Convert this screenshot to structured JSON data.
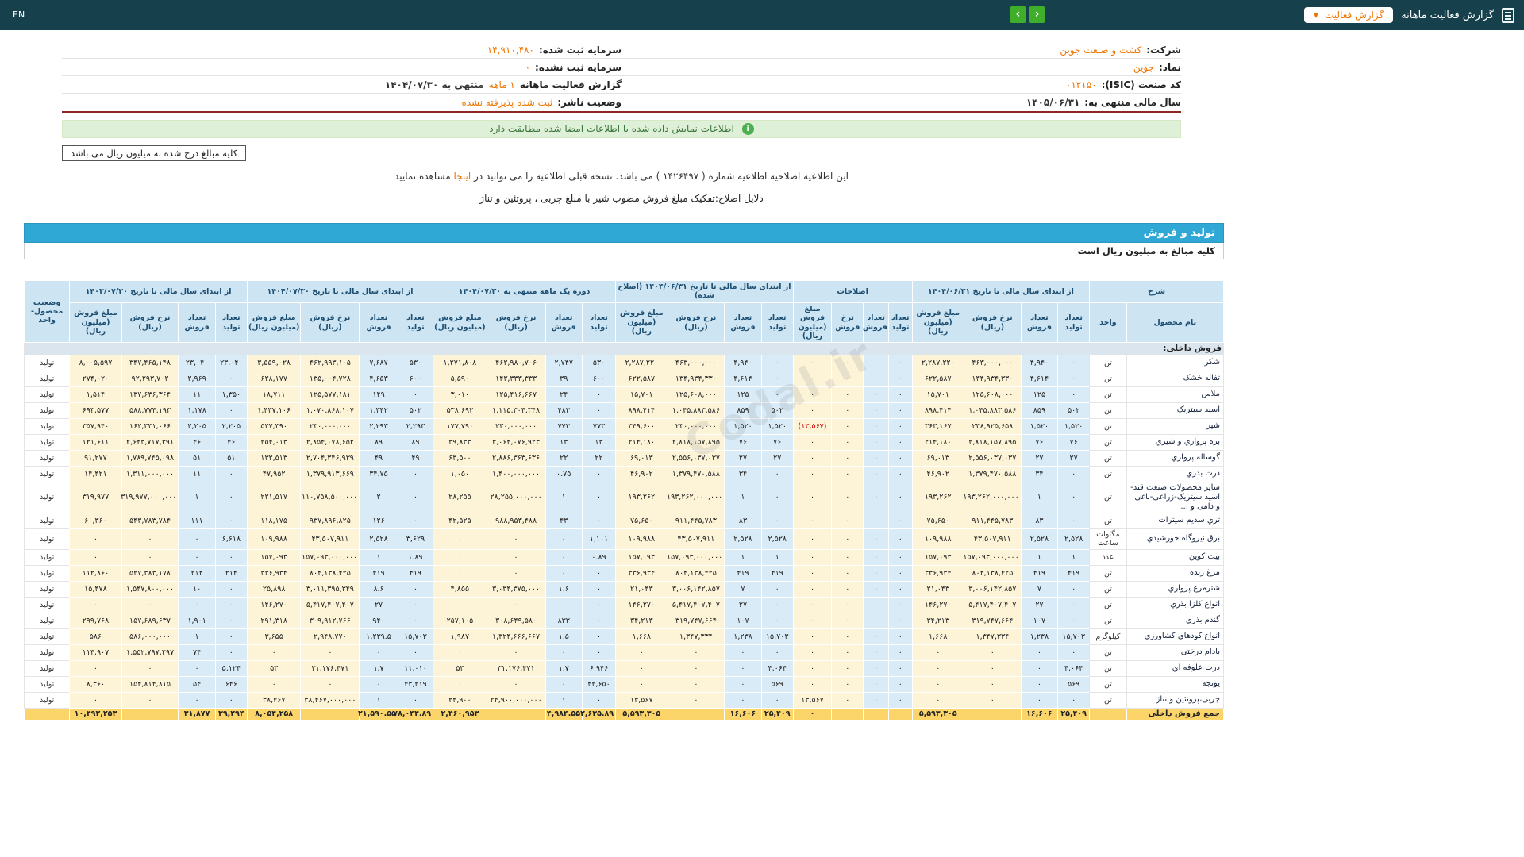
{
  "colors": {
    "navbar": "#16414c",
    "accent_orange": "#ee7500",
    "nav_green": "#3fae2a",
    "section_bar_blue": "#2fa8d5",
    "qty_cell_blue": "#d9ebf7",
    "money_cell_cream": "#fdf4d7",
    "total_row_amber": "#fbd56a",
    "negative_red": "#cc0000",
    "success_bg": "#dff0d8",
    "divider_maroon": "#8c2723"
  },
  "navbar": {
    "title": "گزارش فعالیت ماهانه",
    "dropdown_label": "گزارش فعالیت",
    "dropdown_caret": "▼",
    "prev_arrow": "‹",
    "next_arrow": "›",
    "en_label": "EN"
  },
  "company": {
    "company_label": "شرکت:",
    "company_value": "کشت و صنعت جوین",
    "symbol_label": "نماد:",
    "symbol_value": "جوین",
    "isic_label": "کد صنعت (ISIC):",
    "isic_value": "۰۱۲۱۵۰",
    "fiscal_year_label": "سال مالی منتهی به:",
    "fiscal_year_value": "۱۴۰۵/۰۶/۳۱",
    "registered_capital_label": "سرمایه ثبت شده:",
    "registered_capital_value": "۱۴,۹۱۰,۴۸۰",
    "unregistered_capital_label": "سرمایه ثبت نشده:",
    "unregistered_capital_value": "۰",
    "period_label": "گزارش فعالیت ماهانه",
    "period_value": "۱ ماهه",
    "period_suffix": "منتهی به ۱۴۰۴/۰۷/۳۰",
    "publisher_status_label": "وضعیت ناشر:",
    "publisher_status_value": "ثبت شده پذیرفته نشده"
  },
  "messages": {
    "signature_match": "اطلاعات نمایش داده شده با اطلاعات امضا شده مطابقت دارد",
    "info_icon_glyph": "i",
    "amounts_note": "کلیه مبالغ درج شده به میلیون ریال می باشد",
    "amendment_pre": "این اطلاعیه اصلاحیه اطلاعیه شماره ( ۱۴۲۶۴۹۷ ) می باشد. نسخه قبلی اطلاعیه را می توانید در",
    "amendment_link": "اینجا",
    "amendment_post": "مشاهده نمایید",
    "amendment_reason": "دلایل اصلاح:تفکیک مبلغ فروش مصوب شیر با مبلغ چربی ، پروتئین و تناژ"
  },
  "watermark": "Codal.ir",
  "table": {
    "section_title": "تولید و فروش",
    "note": "کلیه مبالغ به میلیون ریال است",
    "col_desc_header": "شرح",
    "name_header": "نام محصول",
    "unit_header": "واحد",
    "status_header": "وضعیت محصول- واحد",
    "groups": [
      {
        "key": "a",
        "title": "از ابتدای سال مالی تا تاریخ ۱۴۰۴/۰۶/۳۱",
        "subs": [
          "تعداد تولید",
          "تعداد فروش",
          "نرخ فروش (ریال)",
          "مبلغ فروش (میلیون ریال)"
        ]
      },
      {
        "key": "b",
        "title": "اصلاحات",
        "subs": [
          "تعداد تولید",
          "تعداد فروش",
          "نرخ فروش",
          "مبلغ فروش (میلیون ریال)"
        ]
      },
      {
        "key": "c",
        "title": "از ابتدای سال مالی تا تاریخ ۱۴۰۴/۰۶/۳۱ (اصلاح شده)",
        "subs": [
          "تعداد تولید",
          "تعداد فروش",
          "نرخ فروش (ریال)",
          "مبلغ فروش (میلیون ریال)"
        ]
      },
      {
        "key": "d",
        "title": "دوره یک ماهه منتهی به ۱۴۰۴/۰۷/۳۰",
        "subs": [
          "تعداد تولید",
          "تعداد فروش",
          "نرخ فروش (ریال)",
          "مبلغ فروش (میلیون ریال)"
        ]
      },
      {
        "key": "e",
        "title": "از ابتدای سال مالی تا تاریخ ۱۴۰۴/۰۷/۳۰",
        "subs": [
          "تعداد تولید",
          "تعداد فروش",
          "نرخ فروش (ریال)",
          "مبلغ فروش (میلیون ریال)"
        ]
      },
      {
        "key": "f",
        "title": "از ابتدای سال مالی تا تاریخ ۱۴۰۳/۰۷/۳۰",
        "subs": [
          "تعداد تولید",
          "تعداد فروش",
          "نرخ فروش (ریال)",
          "مبلغ فروش (میلیون ریال)"
        ]
      }
    ],
    "section_row": "فروش داخلی:",
    "rows": [
      {
        "name": "شکر",
        "unit": "تن",
        "status": "تولید",
        "a": [
          "۰",
          "۴,۹۴۰",
          "۴۶۳,۰۰۰,۰۰۰",
          "۲,۲۸۷,۲۲۰"
        ],
        "b": [
          "۰",
          "۰",
          "۰",
          "۰"
        ],
        "c": [
          "۰",
          "۴,۹۴۰",
          "۴۶۳,۰۰۰,۰۰۰",
          "۲,۲۸۷,۲۲۰"
        ],
        "d": [
          "۵۳۰",
          "۲,۷۴۷",
          "۴۶۲,۹۸۰,۷۰۶",
          "۱,۲۷۱,۸۰۸"
        ],
        "e": [
          "۵۳۰",
          "۷,۶۸۷",
          "۴۶۲,۹۹۳,۱۰۵",
          "۳,۵۵۹,۰۲۸"
        ],
        "f": [
          "۲۳,۰۴۰",
          "۲۳,۰۴۰",
          "۳۴۷,۴۶۵,۱۴۸",
          "۸,۰۰۵,۵۹۷"
        ]
      },
      {
        "name": "تفاله خشک",
        "unit": "تن",
        "status": "تولید",
        "a": [
          "۰",
          "۴,۶۱۴",
          "۱۳۴,۹۳۴,۳۳۰",
          "۶۲۲,۵۸۷"
        ],
        "b": [
          "۰",
          "۰",
          "۰",
          "۰"
        ],
        "c": [
          "۰",
          "۴,۶۱۴",
          "۱۳۴,۹۳۴,۳۳۰",
          "۶۲۲,۵۸۷"
        ],
        "d": [
          "۶۰۰",
          "۳۹",
          "۱۴۳,۳۳۳,۳۳۳",
          "۵,۵۹۰"
        ],
        "e": [
          "۶۰۰",
          "۴,۶۵۳",
          "۱۳۵,۰۰۴,۷۲۸",
          "۶۲۸,۱۷۷"
        ],
        "f": [
          "۰",
          "۲,۹۶۹",
          "۹۲,۲۹۳,۷۰۲",
          "۲۷۴,۰۲۰"
        ]
      },
      {
        "name": "ملاس",
        "unit": "تن",
        "status": "تولید",
        "a": [
          "۰",
          "۱۲۵",
          "۱۲۵,۶۰۸,۰۰۰",
          "۱۵,۷۰۱"
        ],
        "b": [
          "۰",
          "۰",
          "۰",
          "۰"
        ],
        "c": [
          "۰",
          "۱۲۵",
          "۱۲۵,۶۰۸,۰۰۰",
          "۱۵,۷۰۱"
        ],
        "d": [
          "۰",
          "۲۴",
          "۱۲۵,۴۱۶,۶۶۷",
          "۳,۰۱۰"
        ],
        "e": [
          "۰",
          "۱۴۹",
          "۱۲۵,۵۷۷,۱۸۱",
          "۱۸,۷۱۱"
        ],
        "f": [
          "۱,۳۵۰",
          "۱۱",
          "۱۳۷,۶۳۶,۳۶۴",
          "۱,۵۱۴"
        ]
      },
      {
        "name": "اسید سیتریک",
        "unit": "تن",
        "status": "تولید",
        "a": [
          "۵۰۲",
          "۸۵۹",
          "۱,۰۴۵,۸۸۳,۵۸۶",
          "۸۹۸,۴۱۴"
        ],
        "b": [
          "۰",
          "۰",
          "۰",
          "۰"
        ],
        "c": [
          "۵۰۲",
          "۸۵۹",
          "۱,۰۴۵,۸۸۳,۵۸۶",
          "۸۹۸,۴۱۴"
        ],
        "d": [
          "۰",
          "۴۸۳",
          "۱,۱۱۵,۳۰۴,۳۴۸",
          "۵۳۸,۶۹۲"
        ],
        "e": [
          "۵۰۲",
          "۱,۳۴۲",
          "۱,۰۷۰,۸۶۸,۱۰۷",
          "۱,۴۳۷,۱۰۶"
        ],
        "f": [
          "۰",
          "۱,۱۷۸",
          "۵۸۸,۷۷۴,۱۹۳",
          "۶۹۳,۵۷۷"
        ]
      },
      {
        "name": "شیر",
        "unit": "تن",
        "status": "تولید",
        "a": [
          "۱,۵۲۰",
          "۱,۵۲۰",
          "۲۳۸,۹۲۵,۶۵۸",
          "۳۶۳,۱۶۷"
        ],
        "b": [
          "۰",
          "۰",
          "۰",
          "(۱۳,۵۶۷)"
        ],
        "c": [
          "۱,۵۲۰",
          "۱,۵۲۰",
          "۲۳۰,۰۰۰,۰۰۰",
          "۳۴۹,۶۰۰"
        ],
        "d": [
          "۷۷۳",
          "۷۷۳",
          "۲۳۰,۰۰۰,۰۰۰",
          "۱۷۷,۷۹۰"
        ],
        "e": [
          "۲,۲۹۳",
          "۲,۲۹۳",
          "۲۳۰,۰۰۰,۰۰۰",
          "۵۲۷,۳۹۰"
        ],
        "f": [
          "۲,۲۰۵",
          "۲,۲۰۵",
          "۱۶۲,۳۳۱,۰۶۶",
          "۳۵۷,۹۴۰"
        ]
      },
      {
        "name": "بره پرواري و شیري",
        "unit": "تن",
        "status": "تولید",
        "a": [
          "۷۶",
          "۷۶",
          "۲,۸۱۸,۱۵۷,۸۹۵",
          "۲۱۴,۱۸۰"
        ],
        "b": [
          "۰",
          "۰",
          "۰",
          "۰"
        ],
        "c": [
          "۷۶",
          "۷۶",
          "۲,۸۱۸,۱۵۷,۸۹۵",
          "۲۱۴,۱۸۰"
        ],
        "d": [
          "۱۳",
          "۱۳",
          "۳,۰۶۴,۰۷۶,۹۲۳",
          "۳۹,۸۳۳"
        ],
        "e": [
          "۸۹",
          "۸۹",
          "۲,۸۵۴,۰۷۸,۶۵۲",
          "۲۵۴,۰۱۳"
        ],
        "f": [
          "۴۶",
          "۴۶",
          "۲,۶۴۳,۷۱۷,۳۹۱",
          "۱۲۱,۶۱۱"
        ]
      },
      {
        "name": "گوساله پرواري",
        "unit": "تن",
        "status": "تولید",
        "a": [
          "۲۷",
          "۲۷",
          "۲,۵۵۶,۰۳۷,۰۳۷",
          "۶۹,۰۱۳"
        ],
        "b": [
          "۰",
          "۰",
          "۰",
          "۰"
        ],
        "c": [
          "۲۷",
          "۲۷",
          "۲,۵۵۶,۰۳۷,۰۳۷",
          "۶۹,۰۱۳"
        ],
        "d": [
          "۲۲",
          "۲۲",
          "۲,۸۸۶,۳۶۳,۶۳۶",
          "۶۳,۵۰۰"
        ],
        "e": [
          "۴۹",
          "۴۹",
          "۲,۷۰۴,۳۴۶,۹۳۹",
          "۱۳۲,۵۱۳"
        ],
        "f": [
          "۵۱",
          "۵۱",
          "۱,۷۸۹,۷۴۵,۰۹۸",
          "۹۱,۲۷۷"
        ]
      },
      {
        "name": "ذرت بذري",
        "unit": "تن",
        "status": "تولید",
        "a": [
          "۰",
          "۳۴",
          "۱,۳۷۹,۴۷۰,۵۸۸",
          "۴۶,۹۰۲"
        ],
        "b": [
          "۰",
          "۰",
          "۰",
          "۰"
        ],
        "c": [
          "۰",
          "۳۴",
          "۱,۳۷۹,۴۷۰,۵۸۸",
          "۴۶,۹۰۲"
        ],
        "d": [
          "۰",
          "۰.۷۵",
          "۱,۴۰۰,۰۰۰,۰۰۰",
          "۱,۰۵۰"
        ],
        "e": [
          "۰",
          "۳۴.۷۵",
          "۱,۳۷۹,۹۱۳,۶۶۹",
          "۴۷,۹۵۲"
        ],
        "f": [
          "۰",
          "۱۱",
          "۱,۳۱۱,۰۰۰,۰۰۰",
          "۱۴,۴۲۱"
        ]
      },
      {
        "name": "سایر محصولات صنعت قند- اسید سیتریک-زراعی-باغی و دامی و ...",
        "unit": "تن",
        "status": "تولید",
        "a": [
          "۰",
          "۱",
          "۱۹۳,۲۶۲,۰۰۰,۰۰۰",
          "۱۹۳,۲۶۲"
        ],
        "b": [
          "۰",
          "۰",
          "۰",
          "۰"
        ],
        "c": [
          "۰",
          "۱",
          "۱۹۳,۲۶۲,۰۰۰,۰۰۰",
          "۱۹۳,۲۶۲"
        ],
        "d": [
          "۰",
          "۱",
          "۲۸,۲۵۵,۰۰۰,۰۰۰",
          "۲۸,۲۵۵"
        ],
        "e": [
          "۰",
          "۲",
          "۱۱۰,۷۵۸,۵۰۰,۰۰۰",
          "۲۲۱,۵۱۷"
        ],
        "f": [
          "۰",
          "۱",
          "۳۱۹,۹۷۷,۰۰۰,۰۰۰",
          "۳۱۹,۹۷۷"
        ]
      },
      {
        "name": "تري سدیم سیترات",
        "unit": "تن",
        "status": "تولید",
        "a": [
          "۰",
          "۸۳",
          "۹۱۱,۴۴۵,۷۸۳",
          "۷۵,۶۵۰"
        ],
        "b": [
          "۰",
          "۰",
          "۰",
          "۰"
        ],
        "c": [
          "۰",
          "۸۳",
          "۹۱۱,۴۴۵,۷۸۳",
          "۷۵,۶۵۰"
        ],
        "d": [
          "۰",
          "۴۳",
          "۹۸۸,۹۵۳,۴۸۸",
          "۴۲,۵۲۵"
        ],
        "e": [
          "۰",
          "۱۲۶",
          "۹۳۷,۸۹۶,۸۲۵",
          "۱۱۸,۱۷۵"
        ],
        "f": [
          "۰",
          "۱۱۱",
          "۵۴۳,۷۸۳,۷۸۴",
          "۶۰,۳۶۰"
        ]
      },
      {
        "name": "برق نیروگاه خورشیدي",
        "unit": "مگاوات ساعت",
        "status": "تولید",
        "a": [
          "۲,۵۲۸",
          "۲,۵۲۸",
          "۴۳,۵۰۷,۹۱۱",
          "۱۰۹,۹۸۸"
        ],
        "b": [
          "۰",
          "۰",
          "۰",
          "۰"
        ],
        "c": [
          "۲,۵۲۸",
          "۲,۵۲۸",
          "۴۳,۵۰۷,۹۱۱",
          "۱۰۹,۹۸۸"
        ],
        "d": [
          "۱,۱۰۱",
          "۰",
          "۰",
          "۰"
        ],
        "e": [
          "۳,۶۲۹",
          "۲,۵۲۸",
          "۴۳,۵۰۷,۹۱۱",
          "۱۰۹,۹۸۸"
        ],
        "f": [
          "۶,۶۱۸",
          "۰",
          "۰",
          "۰"
        ]
      },
      {
        "name": "بیت کوین",
        "unit": "عدد",
        "status": "تولید",
        "a": [
          "۱",
          "۱",
          "۱۵۷,۰۹۳,۰۰۰,۰۰۰",
          "۱۵۷,۰۹۳"
        ],
        "b": [
          "۰",
          "۰",
          "۰",
          "۰"
        ],
        "c": [
          "۱",
          "۱",
          "۱۵۷,۰۹۳,۰۰۰,۰۰۰",
          "۱۵۷,۰۹۳"
        ],
        "d": [
          "۰.۸۹",
          "۰",
          "۰",
          "۰"
        ],
        "e": [
          "۱.۸۹",
          "۱",
          "۱۵۷,۰۹۳,۰۰۰,۰۰۰",
          "۱۵۷,۰۹۳"
        ],
        "f": [
          "۰",
          "۰",
          "۰",
          "۰"
        ]
      },
      {
        "name": "مرغ زنده",
        "unit": "تن",
        "status": "تولید",
        "a": [
          "۴۱۹",
          "۴۱۹",
          "۸۰۴,۱۳۸,۴۲۵",
          "۳۳۶,۹۳۴"
        ],
        "b": [
          "۰",
          "۰",
          "۰",
          "۰"
        ],
        "c": [
          "۴۱۹",
          "۴۱۹",
          "۸۰۴,۱۳۸,۴۲۵",
          "۳۳۶,۹۳۴"
        ],
        "d": [
          "۰",
          "۰",
          "۰",
          "۰"
        ],
        "e": [
          "۴۱۹",
          "۴۱۹",
          "۸۰۴,۱۳۸,۴۲۵",
          "۳۳۶,۹۳۴"
        ],
        "f": [
          "۲۱۴",
          "۲۱۴",
          "۵۲۷,۳۸۳,۱۷۸",
          "۱۱۲,۸۶۰"
        ]
      },
      {
        "name": "شترمرغ پرواري",
        "unit": "تن",
        "status": "تولید",
        "a": [
          "۰",
          "۷",
          "۳,۰۰۶,۱۴۲,۸۵۷",
          "۲۱,۰۴۳"
        ],
        "b": [
          "۰",
          "۰",
          "۰",
          "۰"
        ],
        "c": [
          "۰",
          "۷",
          "۳,۰۰۶,۱۴۲,۸۵۷",
          "۲۱,۰۴۳"
        ],
        "d": [
          "۰",
          "۱.۶",
          "۳,۰۳۴,۳۷۵,۰۰۰",
          "۴,۸۵۵"
        ],
        "e": [
          "۰",
          "۸.۶",
          "۳,۰۱۱,۳۹۵,۳۴۹",
          "۲۵,۸۹۸"
        ],
        "f": [
          "۰",
          "۱۰",
          "۱,۵۴۷,۸۰۰,۰۰۰",
          "۱۵,۴۷۸"
        ]
      },
      {
        "name": "انواع کلزا بذري",
        "unit": "تن",
        "status": "تولید",
        "a": [
          "۰",
          "۲۷",
          "۵,۴۱۷,۴۰۷,۴۰۷",
          "۱۴۶,۲۷۰"
        ],
        "b": [
          "۰",
          "۰",
          "۰",
          "۰"
        ],
        "c": [
          "۰",
          "۲۷",
          "۵,۴۱۷,۴۰۷,۴۰۷",
          "۱۴۶,۲۷۰"
        ],
        "d": [
          "۰",
          "۰",
          "۰",
          "۰"
        ],
        "e": [
          "۰",
          "۲۷",
          "۵,۴۱۷,۴۰۷,۴۰۷",
          "۱۴۶,۲۷۰"
        ],
        "f": [
          "۰",
          "۰",
          "۰",
          "۰"
        ]
      },
      {
        "name": "گندم بذري",
        "unit": "تن",
        "status": "تولید",
        "a": [
          "۰",
          "۱۰۷",
          "۳۱۹,۷۴۷,۶۶۴",
          "۳۴,۲۱۳"
        ],
        "b": [
          "۰",
          "۰",
          "۰",
          "۰"
        ],
        "c": [
          "۰",
          "۱۰۷",
          "۳۱۹,۷۴۷,۶۶۴",
          "۳۴,۲۱۳"
        ],
        "d": [
          "۰",
          "۸۳۳",
          "۳۰۸,۶۴۹,۵۸۰",
          "۲۵۷,۱۰۵"
        ],
        "e": [
          "۰",
          "۹۴۰",
          "۳۰۹,۹۱۲,۷۶۶",
          "۲۹۱,۳۱۸"
        ],
        "f": [
          "۰",
          "۱,۹۰۱",
          "۱۵۷,۶۸۹,۶۳۷",
          "۲۹۹,۷۶۸"
        ]
      },
      {
        "name": "انواع کودهاي کشاورزي",
        "unit": "کیلوگرم",
        "status": "تولید",
        "a": [
          "۱۵,۷۰۳",
          "۱,۲۳۸",
          "۱,۳۴۷,۳۳۴",
          "۱,۶۶۸"
        ],
        "b": [
          "۰",
          "۰",
          "۰",
          "۰"
        ],
        "c": [
          "۱۵,۷۰۳",
          "۱,۲۳۸",
          "۱,۳۴۷,۳۳۴",
          "۱,۶۶۸"
        ],
        "d": [
          "۰",
          "۱.۵",
          "۱,۳۲۴,۶۶۶,۶۶۷",
          "۱,۹۸۷"
        ],
        "e": [
          "۱۵,۷۰۳",
          "۱,۲۳۹.۵",
          "۲,۹۴۸,۷۷۰",
          "۳,۶۵۵"
        ],
        "f": [
          "۰",
          "۱",
          "۵۸۶,۰۰۰,۰۰۰",
          "۵۸۶"
        ]
      },
      {
        "name": "بادام درختی",
        "unit": "تن",
        "status": "تولید",
        "a": [
          "۰",
          "۰",
          "۰",
          "۰"
        ],
        "b": [
          "۰",
          "۰",
          "۰",
          "۰"
        ],
        "c": [
          "۰",
          "۰",
          "۰",
          "۰"
        ],
        "d": [
          "۰",
          "۰",
          "۰",
          "۰"
        ],
        "e": [
          "۰",
          "۰",
          "۰",
          "۰"
        ],
        "f": [
          "۰",
          "۷۴",
          "۱,۵۵۲,۷۹۷,۲۹۷",
          "۱۱۴,۹۰۷"
        ]
      },
      {
        "name": "ذرت علوفه اي",
        "unit": "تن",
        "status": "تولید",
        "a": [
          "۴,۰۶۴",
          "۰",
          "۰",
          "۰"
        ],
        "b": [
          "۰",
          "۰",
          "۰",
          "۰"
        ],
        "c": [
          "۴,۰۶۴",
          "۰",
          "۰",
          "۰"
        ],
        "d": [
          "۶,۹۴۶",
          "۱.۷",
          "۳۱,۱۷۶,۴۷۱",
          "۵۳"
        ],
        "e": [
          "۱۱,۰۱۰",
          "۱.۷",
          "۳۱,۱۷۶,۴۷۱",
          "۵۳"
        ],
        "f": [
          "۵,۱۲۴",
          "۰",
          "۰",
          "۰"
        ]
      },
      {
        "name": "یونجه",
        "unit": "تن",
        "status": "تولید",
        "a": [
          "۵۶۹",
          "۰",
          "۰",
          "۰"
        ],
        "b": [
          "۰",
          "۰",
          "۰",
          "۰"
        ],
        "c": [
          "۵۶۹",
          "۰",
          "۰",
          "۰"
        ],
        "d": [
          "۴۲,۶۵۰",
          "۰",
          "۰",
          "۰"
        ],
        "e": [
          "۴۳,۲۱۹",
          "۰",
          "۰",
          "۰"
        ],
        "f": [
          "۶۴۶",
          "۵۴",
          "۱۵۴,۸۱۴,۸۱۵",
          "۸,۳۶۰"
        ]
      },
      {
        "name": "چربی،پروتئین و تناژ",
        "unit": "تن",
        "status": "تولید",
        "a": [
          "۰",
          "۰",
          "۰",
          "۰"
        ],
        "b": [
          "۰",
          "۰",
          "۰",
          "۱۳,۵۶۷"
        ],
        "c": [
          "۰",
          "۰",
          "۰",
          "۱۳,۵۶۷"
        ],
        "d": [
          "۰",
          "۱",
          "۲۴,۹۰۰,۰۰۰,۰۰۰",
          "۲۴,۹۰۰"
        ],
        "e": [
          "۰",
          "۱",
          "۳۸,۴۶۷,۰۰۰,۰۰۰",
          "۳۸,۴۶۷"
        ],
        "f": [
          "۰",
          "۰",
          "۰",
          "۰"
        ]
      }
    ],
    "total_row": {
      "name": "جمع فروش داخلی",
      "unit": "",
      "status": "",
      "a": [
        "۲۵,۴۰۹",
        "۱۶,۶۰۶",
        "",
        "۵,۵۹۳,۳۰۵"
      ],
      "b": [
        "",
        "",
        "",
        "۰"
      ],
      "c": [
        "۲۵,۴۰۹",
        "۱۶,۶۰۶",
        "",
        "۵,۵۹۳,۳۰۵"
      ],
      "d": [
        "۵۲,۶۳۵.۸۹",
        "۴,۹۸۴.۵۵",
        "",
        "۲,۴۶۰,۹۵۳"
      ],
      "e": [
        "۷۸,۰۴۴.۸۹",
        "۲۱,۵۹۰.۵۵",
        "",
        "۸,۰۵۴,۲۵۸"
      ],
      "f": [
        "۳۹,۲۹۴",
        "۳۱,۸۷۷",
        "",
        "۱۰,۴۹۲,۲۵۳"
      ]
    }
  }
}
